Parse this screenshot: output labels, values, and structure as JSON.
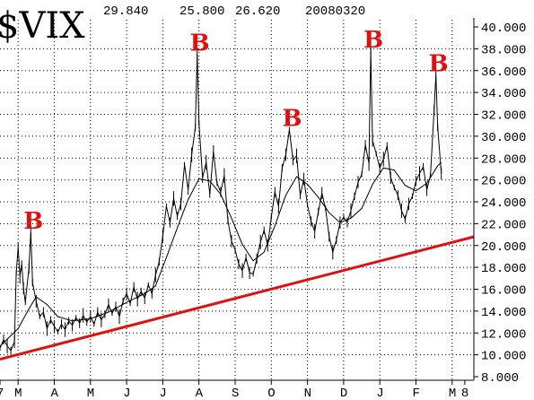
{
  "chart_data": {
    "type": "line",
    "title": "$VIX",
    "header_values": [
      "29.840",
      "25.800",
      "26.620",
      "20080320"
    ],
    "ylim": [
      8,
      40
    ],
    "yticks": [
      "40.000",
      "38.000",
      "36.000",
      "34.000",
      "32.000",
      "30.000",
      "28.000",
      "26.000",
      "24.000",
      "22.000",
      "20.000",
      "18.000",
      "16.000",
      "14.000",
      "12.000",
      "10.000",
      "8.000"
    ],
    "xticks": [
      {
        "label": "7",
        "t": 0
      },
      {
        "label": "M",
        "t": 0.5
      },
      {
        "label": "A",
        "t": 1.5
      },
      {
        "label": "M",
        "t": 2.5
      },
      {
        "label": "J",
        "t": 3.5
      },
      {
        "label": "J",
        "t": 4.5
      },
      {
        "label": "A",
        "t": 5.5
      },
      {
        "label": "S",
        "t": 6.5
      },
      {
        "label": "O",
        "t": 7.5
      },
      {
        "label": "N",
        "t": 8.5
      },
      {
        "label": "D",
        "t": 9.5
      },
      {
        "label": "J",
        "t": 10.5
      },
      {
        "label": "F",
        "t": 11.5
      },
      {
        "label": "M",
        "t": 12.5
      },
      {
        "label": "8",
        "t": 12.85
      }
    ],
    "xlim": [
      0,
      13.1
    ],
    "price": [
      [
        0,
        10.6
      ],
      [
        0.1,
        11.4
      ],
      [
        0.2,
        10.8
      ],
      [
        0.3,
        10.4
      ],
      [
        0.4,
        11.2
      ],
      [
        0.45,
        17.5
      ],
      [
        0.5,
        19.8
      ],
      [
        0.55,
        17.2
      ],
      [
        0.6,
        18.3
      ],
      [
        0.65,
        16.1
      ],
      [
        0.7,
        14.8
      ],
      [
        0.8,
        17.9
      ],
      [
        0.85,
        21.2
      ],
      [
        0.9,
        16.6
      ],
      [
        1.0,
        14.9
      ],
      [
        1.1,
        13.5
      ],
      [
        1.2,
        13.9
      ],
      [
        1.3,
        12.4
      ],
      [
        1.4,
        13.2
      ],
      [
        1.5,
        12.6
      ],
      [
        1.6,
        12.1
      ],
      [
        1.7,
        12.8
      ],
      [
        1.8,
        12.3
      ],
      [
        1.9,
        13.1
      ],
      [
        2.0,
        12.7
      ],
      [
        2.1,
        13.4
      ],
      [
        2.2,
        12.9
      ],
      [
        2.3,
        13.6
      ],
      [
        2.4,
        13.0
      ],
      [
        2.5,
        13.5
      ],
      [
        2.6,
        12.8
      ],
      [
        2.7,
        13.9
      ],
      [
        2.8,
        13.2
      ],
      [
        2.9,
        13.7
      ],
      [
        3.0,
        14.6
      ],
      [
        3.1,
        13.8
      ],
      [
        3.2,
        14.4
      ],
      [
        3.3,
        13.5
      ],
      [
        3.4,
        14.9
      ],
      [
        3.5,
        15.6
      ],
      [
        3.6,
        14.7
      ],
      [
        3.7,
        16.2
      ],
      [
        3.8,
        15.1
      ],
      [
        3.9,
        15.8
      ],
      [
        4.0,
        15.2
      ],
      [
        4.1,
        16.4
      ],
      [
        4.2,
        15.6
      ],
      [
        4.3,
        17.3
      ],
      [
        4.4,
        18.5
      ],
      [
        4.5,
        20.9
      ],
      [
        4.6,
        23.6
      ],
      [
        4.7,
        22.1
      ],
      [
        4.8,
        24.3
      ],
      [
        4.9,
        22.7
      ],
      [
        5.0,
        23.8
      ],
      [
        5.1,
        27.4
      ],
      [
        5.2,
        25.1
      ],
      [
        5.3,
        28.3
      ],
      [
        5.4,
        30.8
      ],
      [
        5.45,
        37.5
      ],
      [
        5.5,
        31.2
      ],
      [
        5.6,
        26.2
      ],
      [
        5.7,
        27.6
      ],
      [
        5.8,
        24.7
      ],
      [
        5.9,
        28.6
      ],
      [
        6.0,
        25.7
      ],
      [
        6.1,
        24.9
      ],
      [
        6.2,
        26.4
      ],
      [
        6.3,
        22.3
      ],
      [
        6.4,
        20.4
      ],
      [
        6.5,
        19.6
      ],
      [
        6.6,
        18.3
      ],
      [
        6.7,
        17.7
      ],
      [
        6.8,
        18.9
      ],
      [
        6.9,
        17.5
      ],
      [
        7.0,
        17.4
      ],
      [
        7.1,
        18.8
      ],
      [
        7.2,
        20.3
      ],
      [
        7.3,
        21.4
      ],
      [
        7.4,
        20.0
      ],
      [
        7.5,
        22.6
      ],
      [
        7.6,
        24.9
      ],
      [
        7.7,
        23.6
      ],
      [
        7.8,
        27.1
      ],
      [
        7.9,
        28.3
      ],
      [
        8.0,
        30.6
      ],
      [
        8.1,
        27.8
      ],
      [
        8.2,
        28.2
      ],
      [
        8.3,
        24.6
      ],
      [
        8.4,
        26.1
      ],
      [
        8.5,
        23.7
      ],
      [
        8.6,
        22.2
      ],
      [
        8.7,
        21.3
      ],
      [
        8.8,
        23.1
      ],
      [
        8.9,
        24.8
      ],
      [
        9.0,
        23.4
      ],
      [
        9.1,
        20.8
      ],
      [
        9.2,
        19.4
      ],
      [
        9.3,
        20.5
      ],
      [
        9.4,
        22.1
      ],
      [
        9.5,
        22.6
      ],
      [
        9.6,
        22.1
      ],
      [
        9.7,
        23.2
      ],
      [
        9.8,
        24.5
      ],
      [
        9.9,
        25.8
      ],
      [
        10.0,
        26.5
      ],
      [
        10.1,
        29.2
      ],
      [
        10.2,
        27.5
      ],
      [
        10.25,
        37.8
      ],
      [
        10.3,
        29.6
      ],
      [
        10.4,
        28.4
      ],
      [
        10.5,
        27.1
      ],
      [
        10.6,
        27.9
      ],
      [
        10.7,
        29.1
      ],
      [
        10.8,
        26.2
      ],
      [
        10.9,
        25.3
      ],
      [
        11.0,
        24.6
      ],
      [
        11.1,
        23.2
      ],
      [
        11.2,
        22.4
      ],
      [
        11.3,
        23.8
      ],
      [
        11.4,
        24.5
      ],
      [
        11.5,
        25.9
      ],
      [
        11.6,
        26.6
      ],
      [
        11.7,
        27.2
      ],
      [
        11.8,
        25.1
      ],
      [
        11.9,
        26.4
      ],
      [
        12.0,
        32.4
      ],
      [
        12.05,
        35.6
      ],
      [
        12.1,
        30.8
      ],
      [
        12.2,
        26.6
      ]
    ],
    "moving_average": [
      [
        0,
        10.8
      ],
      [
        0.5,
        12.4
      ],
      [
        0.8,
        14.2
      ],
      [
        1.0,
        15.3
      ],
      [
        1.3,
        14.6
      ],
      [
        1.6,
        13.5
      ],
      [
        2.0,
        13.1
      ],
      [
        2.5,
        13.3
      ],
      [
        3.0,
        13.9
      ],
      [
        3.5,
        14.8
      ],
      [
        4.0,
        15.6
      ],
      [
        4.3,
        16.3
      ],
      [
        4.6,
        18.9
      ],
      [
        4.9,
        21.6
      ],
      [
        5.2,
        24.2
      ],
      [
        5.5,
        26.1
      ],
      [
        5.8,
        25.9
      ],
      [
        6.1,
        24.7
      ],
      [
        6.4,
        22.5
      ],
      [
        6.7,
        20.1
      ],
      [
        7.0,
        18.6
      ],
      [
        7.3,
        19.4
      ],
      [
        7.6,
        21.8
      ],
      [
        7.9,
        24.6
      ],
      [
        8.2,
        26.3
      ],
      [
        8.5,
        25.6
      ],
      [
        8.8,
        24.4
      ],
      [
        9.1,
        23.0
      ],
      [
        9.4,
        22.1
      ],
      [
        9.7,
        22.5
      ],
      [
        10.0,
        23.4
      ],
      [
        10.3,
        25.6
      ],
      [
        10.6,
        27.1
      ],
      [
        10.9,
        26.9
      ],
      [
        11.2,
        25.5
      ],
      [
        11.5,
        25.0
      ],
      [
        11.8,
        25.7
      ],
      [
        12.1,
        27.3
      ],
      [
        12.2,
        27.6
      ]
    ],
    "trendline": [
      [
        0,
        9.6
      ],
      [
        13.1,
        20.8
      ]
    ],
    "buy_signals": [
      {
        "label": "B",
        "t": 0.85,
        "y": 21.2
      },
      {
        "label": "B",
        "t": 5.45,
        "y": 37.5
      },
      {
        "label": "B",
        "t": 8.0,
        "y": 30.6
      },
      {
        "label": "B",
        "t": 10.25,
        "y": 37.8
      },
      {
        "label": "B",
        "t": 12.05,
        "y": 35.6
      }
    ],
    "grid": true,
    "colors": {
      "price": "#000000",
      "moving_average": "#000000",
      "trendline": "#dd1111",
      "buy_signal": "#e01010"
    }
  }
}
